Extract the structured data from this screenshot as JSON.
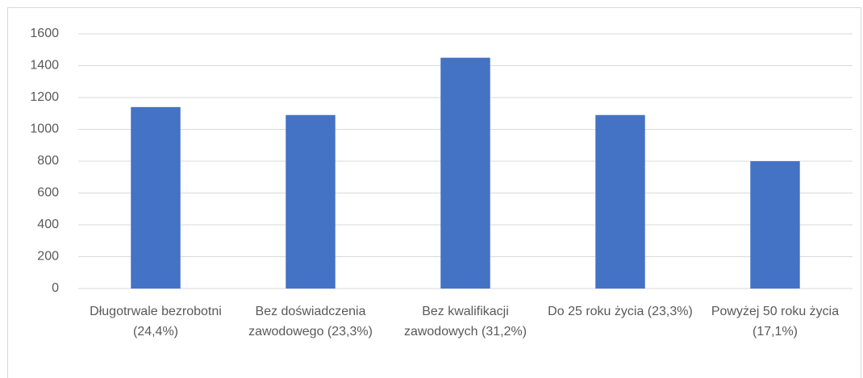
{
  "chart_data": {
    "type": "bar",
    "categories": [
      "Długotrwale bezrobotni (24,4%)",
      "Bez doświadczenia zawodowego (23,3%)",
      "Bez kwalifikacji zawodowych (31,2%)",
      "Do 25 roku życia (23,3%)",
      "Powyżej 50 roku życia (17,1%)"
    ],
    "values": [
      1140,
      1090,
      1450,
      1090,
      800
    ],
    "color": "#4472c4",
    "ylim": [
      0,
      1600
    ],
    "yticks": [
      0,
      200,
      400,
      600,
      800,
      1000,
      1200,
      1400,
      1600
    ],
    "grid": true
  }
}
